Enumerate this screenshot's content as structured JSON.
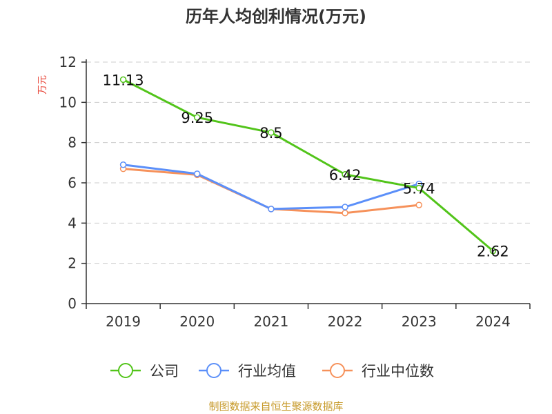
{
  "chart_data": {
    "type": "line",
    "title": "历年人均创利情况(万元)",
    "ylabel": "万元",
    "xlabel": "",
    "ylim": [
      0,
      12
    ],
    "yticks": [
      0,
      2,
      4,
      6,
      8,
      10,
      12
    ],
    "categories": [
      "2019",
      "2020",
      "2021",
      "2022",
      "2023",
      "2024"
    ],
    "series": [
      {
        "name": "公司",
        "color": "#52c41a",
        "values": [
          11.13,
          9.25,
          8.5,
          6.42,
          5.74,
          2.62
        ],
        "labels": [
          "11.13",
          "9.25",
          "8.5",
          "6.42",
          "5.74",
          "2.62"
        ]
      },
      {
        "name": "行业均值",
        "color": "#5b8ff9",
        "values": [
          6.9,
          6.45,
          4.7,
          4.8,
          5.95,
          null
        ]
      },
      {
        "name": "行业中位数",
        "color": "#f6915a",
        "values": [
          6.7,
          6.4,
          4.7,
          4.5,
          4.9,
          null
        ]
      }
    ],
    "grid": true,
    "legend": "bottom"
  },
  "colors": {
    "axis": "#333333",
    "grid": "#cccccc",
    "ylabel": "#e8473a",
    "source": "#c79a2a"
  },
  "source": "制图数据来自恒生聚源数据库"
}
